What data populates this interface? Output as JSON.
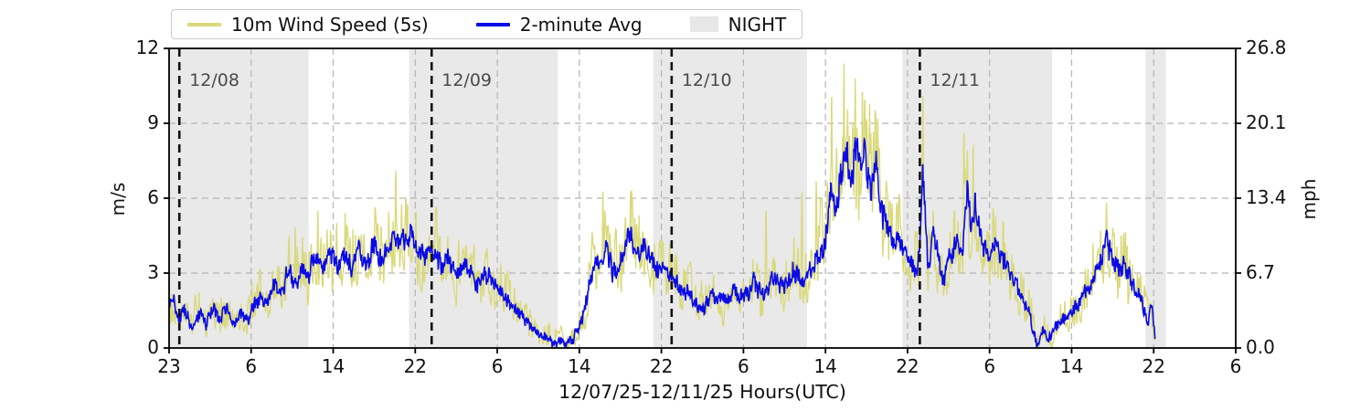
{
  "figure": {
    "legend": {
      "items": [
        {
          "label": "10m Wind Speed (5s)",
          "swatch": "line",
          "color": "#d9d97a"
        },
        {
          "label": "2-minute Avg",
          "swatch": "line",
          "color": "#0b0be6"
        },
        {
          "label": "NIGHT",
          "swatch": "patch",
          "color": "#e7e7e7"
        }
      ]
    },
    "axes": {
      "left": {
        "label": "m/s",
        "tick_values": [
          12,
          9,
          6,
          3,
          0
        ],
        "tick_labels": [
          "12",
          "9",
          "6",
          "3",
          "0"
        ]
      },
      "right": {
        "label": "mph",
        "tick_values": [
          12,
          9,
          6,
          3,
          0
        ],
        "tick_labels": [
          "26.8",
          "20.1",
          "13.4",
          "6.7",
          "0.0"
        ]
      },
      "x": {
        "label": "12/07/25-12/11/25  Hours(UTC)",
        "tick_hours": [
          0,
          8,
          16,
          24,
          32,
          40,
          48,
          56,
          64,
          72,
          80,
          88,
          96,
          104
        ],
        "tick_labels": [
          "23",
          "6",
          "14",
          "22",
          "6",
          "14",
          "22",
          "6",
          "14",
          "22",
          "6",
          "14",
          "22",
          "6"
        ]
      }
    },
    "day_lines": [
      {
        "hour": 1.0,
        "label": "12/08"
      },
      {
        "hour": 25.6,
        "label": "12/09"
      },
      {
        "hour": 49.0,
        "label": "12/10"
      },
      {
        "hour": 73.2,
        "label": "12/11"
      }
    ],
    "night_bands_hours": [
      [
        0,
        13.6
      ],
      [
        23.4,
        37.9
      ],
      [
        47.2,
        62.2
      ],
      [
        71.5,
        86.1
      ],
      [
        95.2,
        97.2
      ]
    ],
    "colors": {
      "night_band": "#e9e9e9",
      "grid": "#b4b4b4",
      "day_line": "#111111",
      "spine": "#000000",
      "raw_series": "#d9d97a",
      "avg_series": "#0b0be6"
    }
  },
  "chart_data": {
    "type": "line",
    "title": "",
    "xlabel": "12/07/25-12/11/25  Hours(UTC)",
    "ylabel_left": "m/s",
    "ylabel_right": "mph",
    "x_unit": "hours since 23:00 UTC 12/07/25",
    "x_range_hours": [
      0,
      104
    ],
    "ylim_ms": [
      0,
      12
    ],
    "ylim_mph": [
      0,
      26.8
    ],
    "grid_horizontal_ms": [
      3,
      6,
      9
    ],
    "data_end_hour": 96.15,
    "legend_position": "upper-left-above-axes",
    "series": [
      {
        "name": "10m Wind Speed (5s)",
        "color": "#d9d97a",
        "note": "raw 5-second samples; noisy envelope around the 2-minute average, gusting roughly +-40% with spikes listed in gust_spikes_h_v",
        "max_ms": 11.4
      },
      {
        "name": "2-minute Avg",
        "color": "#0b0be6",
        "avg_points_h_v": [
          [
            0,
            1.6
          ],
          [
            0.3,
            2.1
          ],
          [
            0.8,
            1.1
          ],
          [
            1.5,
            1.5
          ],
          [
            2.2,
            0.9
          ],
          [
            3,
            1.4
          ],
          [
            3.6,
            0.8
          ],
          [
            4.2,
            1.6
          ],
          [
            5,
            1.1
          ],
          [
            5.6,
            1.7
          ],
          [
            6.3,
            0.9
          ],
          [
            7,
            1.4
          ],
          [
            7.6,
            1.1
          ],
          [
            8.2,
            1.6
          ],
          [
            9,
            2.1
          ],
          [
            9.6,
            1.7
          ],
          [
            10.2,
            2.6
          ],
          [
            11,
            2.2
          ],
          [
            11.6,
            3.1
          ],
          [
            12.2,
            2.5
          ],
          [
            13,
            3.3
          ],
          [
            13.6,
            2.8
          ],
          [
            14.2,
            3.7
          ],
          [
            15,
            3.2
          ],
          [
            15.6,
            3.9
          ],
          [
            16.4,
            3.3
          ],
          [
            17,
            3.8
          ],
          [
            17.8,
            3.3
          ],
          [
            18.5,
            4.0
          ],
          [
            19.2,
            3.4
          ],
          [
            20,
            4.1
          ],
          [
            20.8,
            3.5
          ],
          [
            21.5,
            4.2
          ],
          [
            22.2,
            4.5
          ],
          [
            23,
            4.2
          ],
          [
            23.6,
            4.6
          ],
          [
            24.3,
            3.8
          ],
          [
            25,
            3.6
          ],
          [
            25.8,
            3.9
          ],
          [
            26.5,
            3.3
          ],
          [
            27.2,
            3.6
          ],
          [
            28,
            3.0
          ],
          [
            29,
            3.3
          ],
          [
            30,
            2.6
          ],
          [
            31,
            2.9
          ],
          [
            32,
            2.3
          ],
          [
            33,
            1.9
          ],
          [
            34,
            1.5
          ],
          [
            35,
            1.0
          ],
          [
            36,
            0.55
          ],
          [
            37,
            0.4
          ],
          [
            37.6,
            0.12
          ],
          [
            38.2,
            0.3
          ],
          [
            38.8,
            0.12
          ],
          [
            39.5,
            0.45
          ],
          [
            40,
            0.8
          ],
          [
            40.6,
            1.8
          ],
          [
            41.2,
            3.0
          ],
          [
            42,
            3.4
          ],
          [
            42.6,
            4.0
          ],
          [
            43.2,
            3.0
          ],
          [
            44,
            3.4
          ],
          [
            44.6,
            4.1
          ],
          [
            45,
            4.6
          ],
          [
            45.6,
            3.6
          ],
          [
            46.3,
            4.0
          ],
          [
            47,
            3.4
          ],
          [
            48,
            3.1
          ],
          [
            49,
            2.8
          ],
          [
            50,
            2.3
          ],
          [
            51,
            2.0
          ],
          [
            52,
            1.6
          ],
          [
            53,
            2.1
          ],
          [
            54,
            1.8
          ],
          [
            55,
            2.3
          ],
          [
            56,
            2.0
          ],
          [
            57,
            2.6
          ],
          [
            58,
            2.2
          ],
          [
            59,
            2.9
          ],
          [
            60,
            2.5
          ],
          [
            61,
            3.1
          ],
          [
            62,
            2.7
          ],
          [
            62.6,
            3.3
          ],
          [
            63.3,
            3.6
          ],
          [
            64,
            4.3
          ],
          [
            64.5,
            6.3
          ],
          [
            65,
            5.4
          ],
          [
            65.5,
            7.1
          ],
          [
            66,
            8.3
          ],
          [
            66.4,
            6.2
          ],
          [
            66.9,
            8.2
          ],
          [
            67.4,
            6.9
          ],
          [
            67.9,
            7.9
          ],
          [
            68.4,
            6.3
          ],
          [
            68.9,
            7.4
          ],
          [
            69.4,
            5.6
          ],
          [
            70,
            4.9
          ],
          [
            70.7,
            4.3
          ],
          [
            71.5,
            3.9
          ],
          [
            72.2,
            3.4
          ],
          [
            73,
            3.0
          ],
          [
            73.5,
            7.2
          ],
          [
            74,
            3.3
          ],
          [
            74.5,
            4.6
          ],
          [
            75,
            3.8
          ],
          [
            75.6,
            2.7
          ],
          [
            76.2,
            3.7
          ],
          [
            76.8,
            4.3
          ],
          [
            77.4,
            3.9
          ],
          [
            77.8,
            6.4
          ],
          [
            78.2,
            4.7
          ],
          [
            78.6,
            6.1
          ],
          [
            79.2,
            4.3
          ],
          [
            79.8,
            3.7
          ],
          [
            80.4,
            4.2
          ],
          [
            81,
            3.8
          ],
          [
            82,
            3.0
          ],
          [
            83,
            2.2
          ],
          [
            84,
            1.2
          ],
          [
            84.6,
            0.15
          ],
          [
            85.2,
            0.8
          ],
          [
            85.7,
            0.35
          ],
          [
            86.2,
            0.7
          ],
          [
            87,
            1.2
          ],
          [
            88,
            1.5
          ],
          [
            89,
            1.9
          ],
          [
            90,
            2.7
          ],
          [
            90.8,
            3.6
          ],
          [
            91.4,
            4.5
          ],
          [
            92,
            3.3
          ],
          [
            92.6,
            3.0
          ],
          [
            93.1,
            3.6
          ],
          [
            93.8,
            2.8
          ],
          [
            94.5,
            2.2
          ],
          [
            95.1,
            1.5
          ],
          [
            95.5,
            1.0
          ],
          [
            95.8,
            1.8
          ],
          [
            96.15,
            0.15
          ]
        ]
      }
    ],
    "gust_spikes_h_v": [
      [
        11.7,
        4.6
      ],
      [
        12.3,
        4.9
      ],
      [
        14.5,
        5.6
      ],
      [
        22.1,
        7.2
      ],
      [
        42.3,
        6.3
      ],
      [
        45.1,
        6.4
      ],
      [
        58.2,
        5.6
      ],
      [
        61.7,
        6.3
      ],
      [
        63.1,
        6.7
      ],
      [
        64.6,
        10.3
      ],
      [
        65.8,
        11.4
      ],
      [
        66.9,
        10.9
      ],
      [
        67.6,
        10.6
      ],
      [
        68.3,
        9.9
      ],
      [
        69.1,
        9.2
      ],
      [
        73.5,
        10.2
      ],
      [
        77.5,
        8.9
      ],
      [
        78.4,
        8.2
      ],
      [
        91.4,
        5.9
      ]
    ]
  }
}
